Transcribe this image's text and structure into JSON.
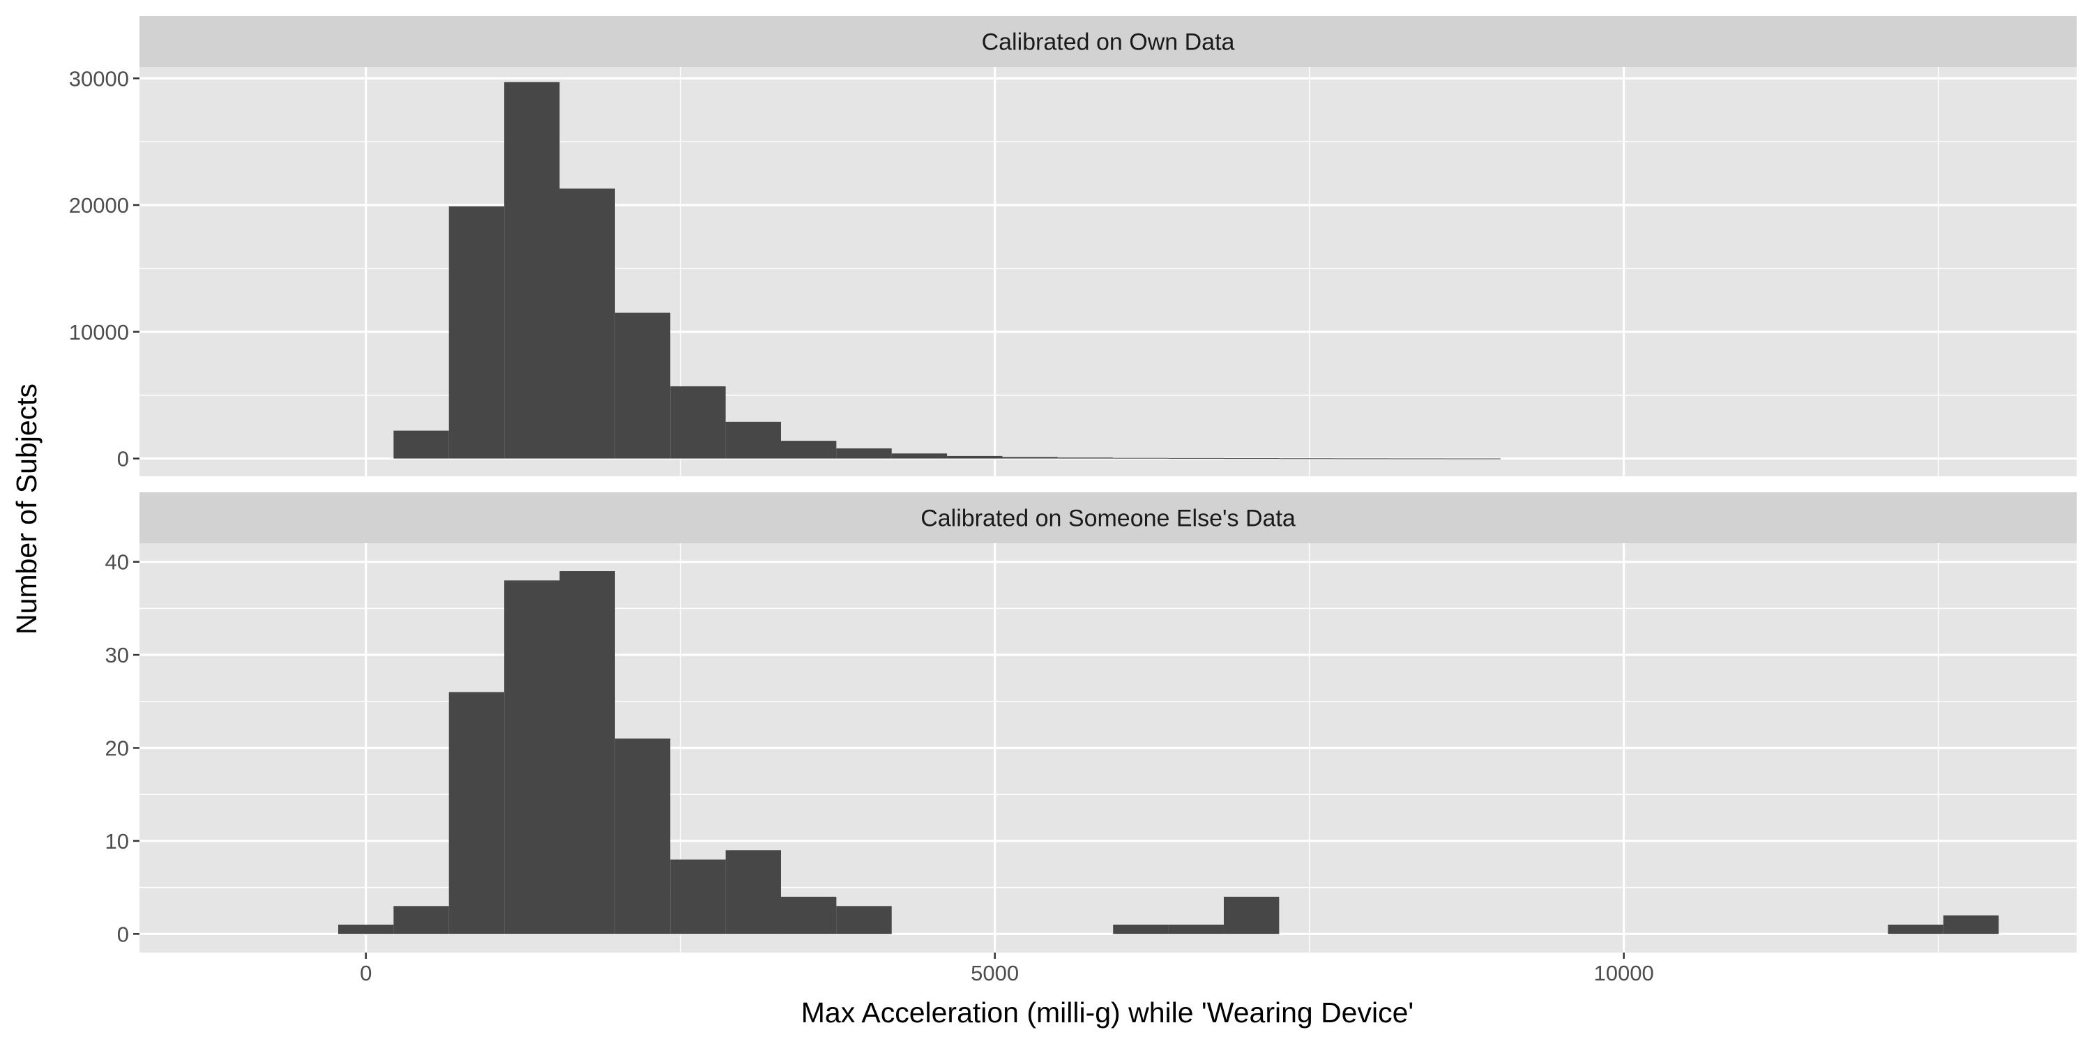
{
  "chart_data": {
    "type": "bar",
    "xlabel": "Max Acceleration (milli-g) while 'Wearing Device'",
    "ylabel": "Number of Subjects",
    "xlim": [
      -1800,
      13600
    ],
    "x_ticks": [
      0,
      5000,
      10000
    ],
    "x_tick_labels": [
      "0",
      "5000",
      "10000"
    ],
    "x_minor_ticks": [
      2500,
      7500,
      12500
    ],
    "bin_width": 440,
    "grid": true,
    "legend": "none",
    "colors": {
      "bar": "#474747",
      "panel": "#e5e5e5",
      "strip": "#d2d2d2",
      "grid": "#ffffff"
    },
    "panels": [
      {
        "strip_label": "Calibrated on Own Data",
        "ylim": [
          -1400,
          30900
        ],
        "y_ticks": [
          0,
          10000,
          20000,
          30000
        ],
        "y_tick_labels": [
          "0",
          "10000",
          "20000",
          "30000"
        ],
        "y_minor_ticks": [
          5000,
          15000,
          25000
        ],
        "bins": [
          {
            "x": 440,
            "count": 2200
          },
          {
            "x": 880,
            "count": 19900
          },
          {
            "x": 1320,
            "count": 29700
          },
          {
            "x": 1760,
            "count": 21300
          },
          {
            "x": 2200,
            "count": 11500
          },
          {
            "x": 2640,
            "count": 5700
          },
          {
            "x": 3080,
            "count": 2900
          },
          {
            "x": 3520,
            "count": 1400
          },
          {
            "x": 3960,
            "count": 800
          },
          {
            "x": 4400,
            "count": 400
          },
          {
            "x": 4840,
            "count": 200
          },
          {
            "x": 5280,
            "count": 120
          },
          {
            "x": 5720,
            "count": 80
          },
          {
            "x": 6160,
            "count": 50
          },
          {
            "x": 6600,
            "count": 40
          },
          {
            "x": 7040,
            "count": 25
          },
          {
            "x": 7480,
            "count": 15
          },
          {
            "x": 7920,
            "count": 10
          },
          {
            "x": 8360,
            "count": 6
          },
          {
            "x": 8800,
            "count": 4
          }
        ]
      },
      {
        "strip_label": "Calibrated on Someone Else's Data",
        "ylim": [
          -2,
          42
        ],
        "y_ticks": [
          0,
          10,
          20,
          30,
          40
        ],
        "y_tick_labels": [
          "0",
          "10",
          "20",
          "30",
          "40"
        ],
        "y_minor_ticks": [
          5,
          15,
          25,
          35
        ],
        "bins": [
          {
            "x": 0,
            "count": 1
          },
          {
            "x": 440,
            "count": 3
          },
          {
            "x": 880,
            "count": 26
          },
          {
            "x": 1320,
            "count": 38
          },
          {
            "x": 1760,
            "count": 39
          },
          {
            "x": 2200,
            "count": 21
          },
          {
            "x": 2640,
            "count": 8
          },
          {
            "x": 3080,
            "count": 9
          },
          {
            "x": 3520,
            "count": 4
          },
          {
            "x": 3960,
            "count": 3
          },
          {
            "x": 6160,
            "count": 1
          },
          {
            "x": 6600,
            "count": 1
          },
          {
            "x": 7040,
            "count": 4
          },
          {
            "x": 12320,
            "count": 1
          },
          {
            "x": 12760,
            "count": 2
          }
        ]
      }
    ]
  }
}
